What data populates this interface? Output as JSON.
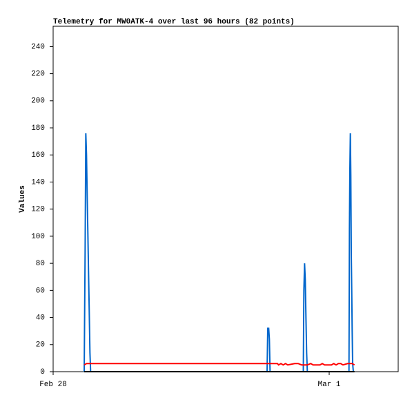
{
  "chart_data": {
    "type": "line",
    "title": "Telemetry for MW0ATK-4 over last 96 hours (82 points)",
    "ylabel": "Values",
    "xlim": [
      0,
      30
    ],
    "xticks": [
      {
        "value": 0,
        "label": "Feb 28"
      },
      {
        "value": 24,
        "label": "Mar 1"
      }
    ],
    "ylim": [
      0,
      255
    ],
    "yticks": [
      0,
      20,
      40,
      60,
      80,
      100,
      120,
      140,
      160,
      180,
      200,
      220,
      240
    ],
    "series": [
      {
        "color": "#0066cc",
        "x": [
          2.7,
          2.78,
          2.84,
          2.9,
          2.96,
          3.02,
          3.08,
          3.14,
          3.2,
          3.26,
          18.6,
          18.66,
          18.74,
          18.8,
          18.86,
          21.75,
          21.8,
          21.86,
          21.92,
          21.98,
          22.04,
          22.1,
          25.72,
          25.76,
          25.8,
          25.84,
          25.88,
          25.92,
          25.96,
          26.0,
          26.04,
          26.1
        ],
        "values": [
          0,
          88,
          176,
          160,
          130,
          102,
          72,
          44,
          14,
          0,
          0,
          32,
          32,
          24,
          0,
          0,
          60,
          80,
          68,
          40,
          14,
          0,
          0,
          105,
          150,
          176,
          145,
          88,
          60,
          30,
          6,
          0
        ]
      },
      {
        "color": "#ff0000",
        "x": [
          2.7,
          2.9,
          19.5,
          19.6,
          19.8,
          20.0,
          20.2,
          20.4,
          21.0,
          21.3,
          21.6,
          22.1,
          22.4,
          22.6,
          23.2,
          23.4,
          23.6,
          24.2,
          24.4,
          24.6,
          24.8,
          25.0,
          25.2,
          25.6,
          26.0,
          26.2
        ],
        "values": [
          5,
          6,
          6,
          5,
          6,
          5,
          6,
          5,
          6,
          6,
          5,
          5,
          6,
          5,
          5,
          6,
          5,
          5,
          6,
          5,
          6,
          6,
          5,
          6,
          6,
          5
        ]
      },
      {
        "color": "#000000",
        "x": [
          2.7,
          26.2
        ],
        "values": [
          0,
          0
        ]
      }
    ]
  }
}
